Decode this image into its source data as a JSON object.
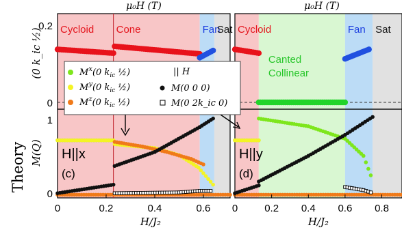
{
  "figure": {
    "side_label": "Theory",
    "top_label": "μ₀H (T)",
    "upper_ylabel": "(0 k_ic ½)",
    "lower_ylabel": "M(Q)",
    "upper_yticks": [
      "0.2",
      "0"
    ],
    "lower_yticks": [
      "1",
      "0"
    ]
  },
  "colors": {
    "cycloid": "#f8c6c7",
    "canted": "#d9f7d2",
    "fan": "#bcdcf6",
    "sat": "#e1e1e1",
    "phase_red": "#e4141c",
    "phase_green": "#27c62a",
    "phase_blue": "#1c3fe0",
    "phase_black": "#111111",
    "mx": "#7ee61c",
    "my": "#f4f425",
    "mz": "#f07a19",
    "m000": "#111111",
    "m02k0": "#ffffff",
    "upper_series": "#e8121b",
    "upper_series_fan": "#2050e0",
    "upper_series_canted": "#22d42a"
  },
  "legend": {
    "entries": [
      {
        "key": "mx",
        "label": "M^x(0 k_ic ½)",
        "main": "M",
        "sup": "x",
        "rest": "(0 k",
        "sub": "ic",
        "tail": " ½)"
      },
      {
        "key": "my",
        "label": "M^y(0 k_ic ½)",
        "main": "M",
        "sup": "y",
        "rest": "(0 k",
        "sub": "ic",
        "tail": " ½)"
      },
      {
        "key": "mz",
        "label": "M^z(0 k_ic ½)",
        "main": "M",
        "sup": "z",
        "rest": "(0 k",
        "sub": "ic",
        "tail": " ½)"
      }
    ],
    "header": "|| H",
    "right_entries": [
      {
        "key": "m000",
        "label": "M(0 0 0)"
      },
      {
        "key": "m02k0",
        "label": "M(0 2k_ic 0)"
      }
    ]
  },
  "chart_data": [
    {
      "type": "scatter",
      "panel": "c",
      "panel_label": "(c)",
      "field_label": "H||x",
      "xlabel": "H/J₂",
      "ylabel": "M(Q)",
      "xlim": [
        0,
        0.71
      ],
      "xticks": [
        "0",
        "0.2",
        "0.4",
        "0.6"
      ],
      "phases": [
        {
          "name": "Cycloid",
          "from": 0,
          "to": 0.23,
          "color_key": "cycloid",
          "text_key": "phase_red"
        },
        {
          "name": "Cone",
          "from": 0.23,
          "to": 0.585,
          "color_key": "cycloid",
          "text_key": "phase_red"
        },
        {
          "name": "Fan",
          "from": 0.585,
          "to": 0.645,
          "color_key": "fan",
          "text_key": "phase_blue"
        },
        {
          "name": "Sat",
          "from": 0.645,
          "to": 0.71,
          "color_key": "sat",
          "text_key": "phase_black"
        }
      ],
      "upper": {
        "ylim": [
          0,
          0.22
        ],
        "segments": [
          {
            "x": [
              0.0,
              0.23
            ],
            "y": [
              0.14,
              0.13
            ],
            "color_key": "upper_series"
          },
          {
            "x": [
              0.235,
              0.585
            ],
            "y": [
              0.148,
              0.128
            ],
            "color_key": "upper_series"
          },
          {
            "x": [
              0.585,
              0.64
            ],
            "y": [
              0.118,
              0.137
            ],
            "color_key": "upper_series_fan"
          }
        ]
      },
      "lower": {
        "ylim": [
          -0.04,
          1.1
        ],
        "series": [
          {
            "key": "mx",
            "x": [
              0.0,
              0.23
            ],
            "y": [
              0.7,
              0.7
            ]
          },
          {
            "key": "my",
            "x": [
              0.0,
              0.23
            ],
            "y": [
              0.7,
              0.7
            ]
          },
          {
            "key": "my",
            "x": [
              0.235,
              0.4,
              0.5,
              0.58,
              0.64
            ],
            "y": [
              0.65,
              0.6,
              0.51,
              0.35,
              0.13
            ]
          },
          {
            "key": "mz",
            "x": [
              0.235,
              0.35,
              0.45,
              0.55,
              0.6
            ],
            "y": [
              0.68,
              0.62,
              0.55,
              0.46,
              0.39
            ]
          },
          {
            "key": "mz",
            "x": [
              0.0,
              0.71
            ],
            "y": [
              0.0,
              0.0
            ]
          },
          {
            "key": "m000",
            "x": [
              0.0,
              0.23
            ],
            "y": [
              0.02,
              0.13
            ]
          },
          {
            "key": "m000",
            "x": [
              0.235,
              0.4,
              0.585,
              0.64
            ],
            "y": [
              0.37,
              0.55,
              0.87,
              0.98
            ]
          },
          {
            "key": "m02k0",
            "x": [
              0.235,
              0.5,
              0.585,
              0.63
            ],
            "y": [
              0.02,
              0.03,
              0.05,
              0.05
            ]
          }
        ]
      }
    },
    {
      "type": "scatter",
      "panel": "d",
      "panel_label": "(d)",
      "field_label": "H||y",
      "xlabel": "H/J₂",
      "ylabel": "",
      "xlim": [
        0,
        0.91
      ],
      "xticks": [
        "0",
        "0.2",
        "0.4",
        "0.6",
        "0.8"
      ],
      "phases": [
        {
          "name": "Cycloid",
          "from": 0,
          "to": 0.13,
          "color_key": "cycloid",
          "text_key": "phase_red"
        },
        {
          "name": "Canted Collinear",
          "line1": "Canted",
          "line2": "Collinear",
          "from": 0.13,
          "to": 0.6,
          "color_key": "canted",
          "text_key": "phase_green"
        },
        {
          "name": "Fan",
          "from": 0.6,
          "to": 0.75,
          "color_key": "fan",
          "text_key": "phase_blue"
        },
        {
          "name": "Sat",
          "from": 0.75,
          "to": 0.91,
          "color_key": "sat",
          "text_key": "phase_black"
        }
      ],
      "upper": {
        "ylim": [
          0,
          0.22
        ],
        "segments": [
          {
            "x": [
              0.0,
              0.13
            ],
            "y": [
              0.14,
              0.13
            ],
            "color_key": "upper_series"
          },
          {
            "x": [
              0.13,
              0.6
            ],
            "y": [
              0.0,
              0.0
            ],
            "color_key": "upper_series_canted"
          },
          {
            "x": [
              0.6,
              0.73
            ],
            "y": [
              0.115,
              0.14
            ],
            "color_key": "upper_series_fan"
          }
        ]
      },
      "lower": {
        "ylim": [
          -0.04,
          1.1
        ],
        "series": [
          {
            "key": "mx",
            "x": [
              0.0,
              0.13
            ],
            "y": [
              0.7,
              0.7
            ]
          },
          {
            "key": "my",
            "x": [
              0.0,
              0.13
            ],
            "y": [
              0.7,
              0.7
            ]
          },
          {
            "key": "mx",
            "x": [
              0.13,
              0.4,
              0.6,
              0.7,
              0.74
            ],
            "y": [
              0.98,
              0.88,
              0.72,
              0.5,
              0.25
            ]
          },
          {
            "key": "mz",
            "x": [
              0.0,
              0.91
            ],
            "y": [
              0.0,
              0.0
            ]
          },
          {
            "key": "m000",
            "x": [
              0.0,
              0.13
            ],
            "y": [
              0.02,
              0.12
            ]
          },
          {
            "key": "m000",
            "x": [
              0.13,
              0.4,
              0.6,
              0.75
            ],
            "y": [
              0.17,
              0.5,
              0.77,
              1.0
            ]
          },
          {
            "key": "m02k0",
            "x": [
              0.6,
              0.7,
              0.74
            ],
            "y": [
              0.1,
              0.06,
              0.03
            ]
          }
        ]
      }
    }
  ]
}
